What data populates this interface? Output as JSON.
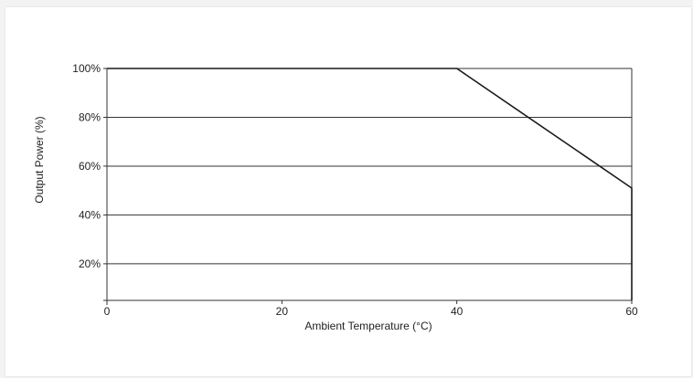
{
  "chart_data": {
    "type": "line",
    "title": "",
    "xlabel": "Ambient Temperature (°C)",
    "ylabel": "Output Power (%)",
    "xlim": [
      0,
      60
    ],
    "ylim": [
      5,
      100
    ],
    "xticks": [
      0,
      20,
      40,
      60
    ],
    "xtick_labels": [
      "0",
      "20",
      "40",
      "60"
    ],
    "yticks": [
      20,
      40,
      60,
      80,
      100
    ],
    "ytick_labels": [
      "20%",
      "40%",
      "60%",
      "80%",
      "100%"
    ],
    "grid": "horizontal",
    "legend": "none",
    "series": [
      {
        "x": [
          0,
          40,
          60,
          60
        ],
        "y": [
          100,
          100,
          51,
          5
        ],
        "color": "#1a1a1a"
      }
    ]
  }
}
